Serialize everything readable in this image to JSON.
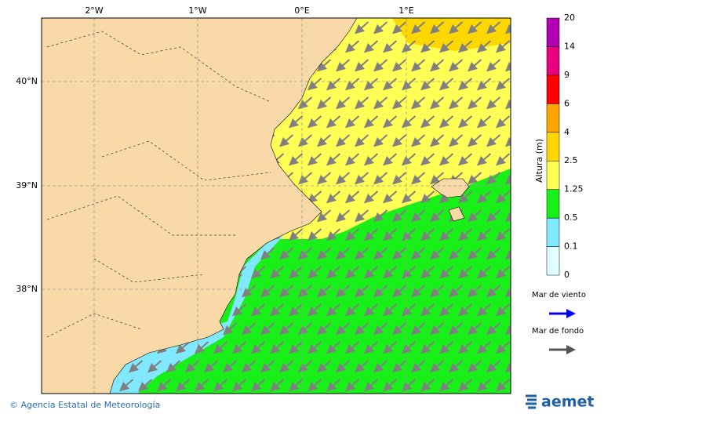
{
  "map": {
    "lon_labels": [
      "2°W",
      "1°W",
      "0°E",
      "1°E"
    ],
    "lat_labels": [
      "40°N",
      "39°N",
      "38°N"
    ],
    "colorbar": {
      "title": "Altura (m)",
      "levels": [
        0,
        0.1,
        0.5,
        1.25,
        2.5,
        4,
        6,
        9,
        14,
        20
      ],
      "colors": [
        "#e0ffff",
        "#80e8ff",
        "#19f019",
        "#ffff55",
        "#ffd700",
        "#ffa500",
        "#ff0000",
        "#e6007e",
        "#b000b0"
      ]
    },
    "legend": [
      {
        "label": "Mar de viento",
        "color": "#0000ee"
      },
      {
        "label": "Mar de fondo",
        "color": "#555555"
      }
    ],
    "footer": "© Agencia Estatal de Meteorología",
    "logo": "aemet"
  }
}
